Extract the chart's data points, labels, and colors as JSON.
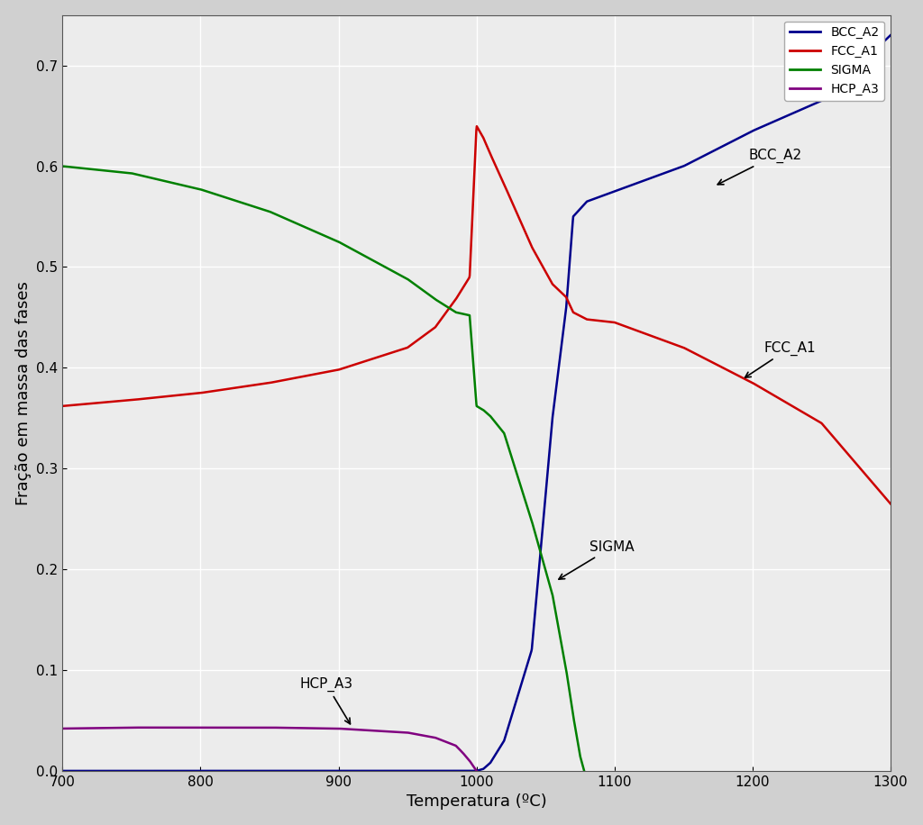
{
  "xlabel": "Temperatura (ºC)",
  "ylabel": "Fração em massa das fases",
  "xlim": [
    700,
    1300
  ],
  "ylim": [
    0.0,
    0.75
  ],
  "yticks": [
    0.0,
    0.1,
    0.2,
    0.3,
    0.4,
    0.5,
    0.6,
    0.7
  ],
  "xticks": [
    700,
    800,
    900,
    1000,
    1100,
    1200,
    1300
  ],
  "background_color": "#d0d0d0",
  "plot_bg_color": "#ececec",
  "grid_color": "#ffffff",
  "colors": {
    "BCC_A2": "#00008B",
    "FCC_A1": "#cc0000",
    "SIGMA": "#008000",
    "HCP_A3": "#800080"
  },
  "BCC_A2_x": [
    700,
    800,
    900,
    1000,
    1005,
    1010,
    1020,
    1040,
    1055,
    1065,
    1070,
    1080,
    1100,
    1150,
    1200,
    1250,
    1300
  ],
  "BCC_A2_y": [
    0.0,
    0.0,
    0.0,
    0.0,
    0.002,
    0.008,
    0.03,
    0.12,
    0.35,
    0.46,
    0.55,
    0.565,
    0.575,
    0.6,
    0.635,
    0.665,
    0.73
  ],
  "FCC_A1_x": [
    700,
    750,
    800,
    850,
    900,
    950,
    970,
    985,
    995,
    1000,
    1005,
    1010,
    1020,
    1040,
    1055,
    1065,
    1070,
    1080,
    1100,
    1150,
    1200,
    1250,
    1300
  ],
  "FCC_A1_y": [
    0.362,
    0.368,
    0.375,
    0.385,
    0.398,
    0.42,
    0.44,
    0.468,
    0.49,
    0.64,
    0.628,
    0.612,
    0.582,
    0.52,
    0.483,
    0.47,
    0.455,
    0.448,
    0.445,
    0.42,
    0.385,
    0.345,
    0.265
  ],
  "SIGMA_x": [
    700,
    750,
    800,
    850,
    900,
    950,
    970,
    985,
    995,
    1000,
    1005,
    1010,
    1020,
    1040,
    1055,
    1065,
    1070,
    1075,
    1078
  ],
  "SIGMA_y": [
    0.6,
    0.593,
    0.577,
    0.555,
    0.525,
    0.488,
    0.468,
    0.455,
    0.452,
    0.362,
    0.358,
    0.352,
    0.335,
    0.248,
    0.175,
    0.1,
    0.055,
    0.015,
    0.0
  ],
  "HCP_A3_x": [
    700,
    750,
    800,
    850,
    900,
    950,
    970,
    985,
    990,
    995,
    998,
    1000
  ],
  "HCP_A3_y": [
    0.042,
    0.043,
    0.043,
    0.043,
    0.042,
    0.038,
    0.033,
    0.025,
    0.018,
    0.01,
    0.004,
    0.0
  ]
}
